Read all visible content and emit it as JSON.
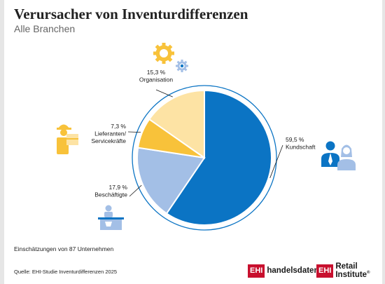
{
  "header": {
    "title": "Verursacher von Inventurdifferenzen",
    "subtitle": "Alle Branchen"
  },
  "chart_data": {
    "type": "pie",
    "title": "Verursacher von Inventurdifferenzen",
    "subtitle": "Alle Branchen",
    "slices": [
      {
        "label": "Kundschaft",
        "value": 59.5,
        "value_label": "59,5 %",
        "color": "#0b74c4"
      },
      {
        "label": "Beschäftigte",
        "value": 17.9,
        "value_label": "17,9 %",
        "color": "#a3bfe6"
      },
      {
        "label": "Lieferanten/\nServicekräfte",
        "value": 7.3,
        "value_label": "7,3 %",
        "color": "#f8c23a"
      },
      {
        "label": "Organisation",
        "value": 15.3,
        "value_label": "15,3 %",
        "color": "#fde3a4"
      }
    ],
    "start": "12 o'clock",
    "direction": "clockwise",
    "outer_ring_color": "#0b74c4"
  },
  "icons": {
    "organisation": "gears-icon",
    "lieferanten": "delivery-person-icon",
    "kundschaft": "customers-icon",
    "beschaeftigte": "cashier-icon"
  },
  "footer": {
    "note": "Einschätzungen von 87 Unternehmen",
    "source": "Quelle: EHI-Studie Inventurdifferenzen 2025",
    "logo1_box": "EHI",
    "logo1_text": "handelsdaten.de",
    "logo2_box": "EHI",
    "logo2_text": "Retail Institute",
    "logo2_mark": "®"
  }
}
